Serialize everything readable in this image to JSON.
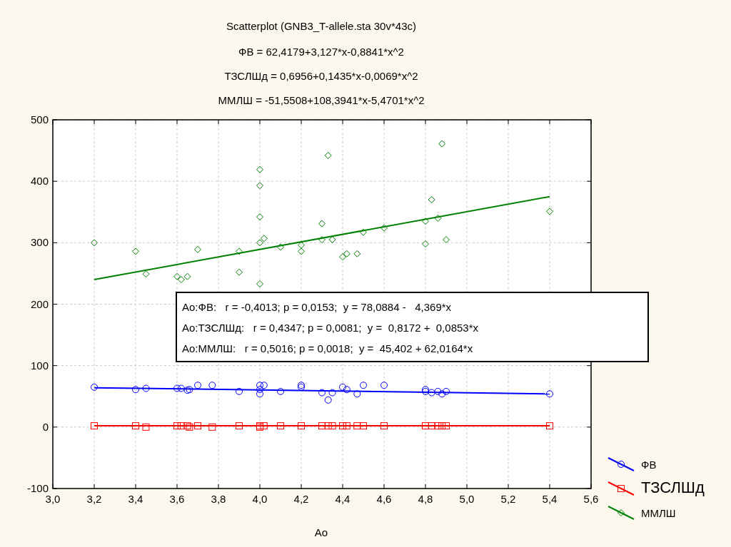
{
  "chart_data": {
    "type": "scatter",
    "title": "Scatterplot (GNB3_T-allele.sta 30v*43c)",
    "subtitle": "ФВ = 62,4179+3,127*x-0,8841*x^2",
    "xlabel": "Ao",
    "annotations": [
      "ТЗСЛШд = 0,6956+0,1435*x-0,0069*x^2",
      "ММЛШ = -51,5508+108,3941*x-5,4701*x^2",
      "Ao:ФВ:   r = -0,4013; p = 0,0153;  y = 78,0884 -   4,369*x",
      "Ao:ТЗСЛШд:   r = 0,4347; p = 0,0081;  y =  0,8172 +  0,0853*x",
      "Ao:ММЛШ:   r = 0,5016; p = 0,0018;  y =  45,402 + 62,0164*x"
    ],
    "xlim": [
      3.0,
      5.6
    ],
    "ylim": [
      -100,
      500
    ],
    "xticks": [
      {
        "value": 3.0,
        "label": "3,0"
      },
      {
        "value": 3.2,
        "label": "3,2"
      },
      {
        "value": 3.4,
        "label": "3,4"
      },
      {
        "value": 3.6,
        "label": "3,6"
      },
      {
        "value": 3.8,
        "label": "3,8"
      },
      {
        "value": 4.0,
        "label": "4,0"
      },
      {
        "value": 4.2,
        "label": "4,2"
      },
      {
        "value": 4.4,
        "label": "4,4"
      },
      {
        "value": 4.6,
        "label": "4,6"
      },
      {
        "value": 4.8,
        "label": "4,8"
      },
      {
        "value": 5.0,
        "label": "5,0"
      },
      {
        "value": 5.2,
        "label": "5,2"
      },
      {
        "value": 5.4,
        "label": "5,4"
      },
      {
        "value": 5.6,
        "label": "5,6"
      }
    ],
    "yticks": [
      -100,
      0,
      100,
      200,
      300,
      400,
      500
    ],
    "grid": true,
    "legend": "bottom right",
    "series": [
      {
        "name": "ФВ",
        "color": "#0000ff",
        "marker": "circle",
        "x": [
          3.2,
          3.4,
          3.45,
          3.6,
          3.62,
          3.65,
          3.66,
          3.7,
          3.77,
          3.9,
          4.0,
          4.02,
          4.0,
          4.0,
          4.1,
          4.2,
          4.2,
          4.3,
          4.33,
          4.35,
          4.4,
          4.42,
          4.47,
          4.5,
          4.6,
          4.8,
          4.8,
          4.83,
          4.86,
          4.88,
          4.9,
          5.4
        ],
        "values": [
          65,
          61,
          63,
          63,
          63,
          60,
          61,
          68,
          68,
          58,
          68,
          68,
          61,
          54,
          58,
          68,
          65,
          56,
          44,
          56,
          65,
          61,
          54,
          68,
          68,
          61,
          58,
          56,
          58,
          54,
          58,
          54
        ]
      },
      {
        "name": "ТЗСЛШд",
        "color": "#ff0000",
        "marker": "square",
        "x": [
          3.2,
          3.4,
          3.45,
          3.6,
          3.62,
          3.65,
          3.66,
          3.7,
          3.77,
          3.9,
          4.0,
          4.02,
          4.0,
          4.1,
          4.2,
          4.3,
          4.33,
          4.35,
          4.4,
          4.42,
          4.47,
          4.5,
          4.6,
          4.8,
          4.83,
          4.86,
          4.88,
          4.9,
          5.4
        ],
        "values": [
          2,
          2,
          0,
          2,
          2,
          2,
          0,
          2,
          0,
          2,
          2,
          2,
          0,
          2,
          2,
          2,
          2,
          2,
          2,
          2,
          2,
          2,
          2,
          2,
          2,
          2,
          2,
          2,
          2
        ]
      },
      {
        "name": "ММЛШ",
        "color": "#008000",
        "marker": "diamond",
        "x": [
          3.2,
          3.4,
          3.45,
          3.6,
          3.62,
          3.65,
          3.7,
          3.9,
          3.9,
          4.0,
          4.0,
          4.0,
          4.0,
          4.02,
          4.0,
          4.1,
          4.2,
          4.2,
          4.3,
          4.3,
          4.33,
          4.35,
          4.4,
          4.42,
          4.47,
          4.5,
          4.6,
          4.8,
          4.8,
          4.83,
          4.86,
          4.88,
          4.9,
          5.4
        ],
        "values": [
          300,
          286,
          249,
          245,
          240,
          245,
          289,
          286,
          252,
          419,
          393,
          342,
          300,
          307,
          233,
          293,
          296,
          286,
          331,
          305,
          442,
          305,
          277,
          282,
          282,
          317,
          324,
          335,
          298,
          370,
          340,
          461,
          305,
          351
        ]
      },
      {
        "type": "line",
        "color": "#0000ff",
        "x": [
          3.2,
          5.4
        ],
        "values": [
          64,
          54
        ]
      },
      {
        "type": "line",
        "color": "#ff0000",
        "x": [
          3.2,
          5.4
        ],
        "values": [
          2,
          2
        ]
      },
      {
        "type": "line",
        "color": "#008000",
        "x": [
          3.2,
          5.4
        ],
        "values": [
          240,
          375
        ]
      }
    ]
  }
}
